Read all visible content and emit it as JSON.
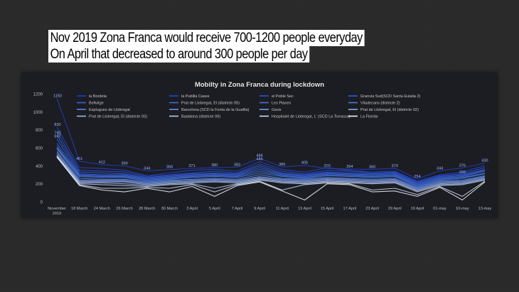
{
  "headline": {
    "line1": "Nov 2019 Zona Franca would receive 700-1200 people everyday",
    "line2": "On April that decreased to around 300 people per day"
  },
  "chart_data": {
    "type": "line",
    "title": "Mobilty in Zona Franca during lockdown",
    "xlabel": "",
    "ylabel": "",
    "ylim": [
      0,
      1200
    ],
    "yticks": [
      0,
      200,
      400,
      600,
      800,
      1000,
      1200
    ],
    "grid": false,
    "legend_position": "top",
    "categories": [
      "November 2019",
      "18 March",
      "24 March",
      "26 March",
      "28 March",
      "30 March",
      "3 April",
      "5 April",
      "7 April",
      "9 April",
      "11 April",
      "13 April",
      "15 April",
      "17 April",
      "23 April",
      "29 April",
      "19 April",
      "01-may",
      "10-may",
      "13-may"
    ],
    "series": [
      {
        "name": "la Bordeta",
        "color": "#1f3fbf",
        "values": [
          1150,
          451,
          412,
          399,
          344,
          358,
          371,
          380,
          383,
          484,
          386,
          405,
          370,
          364,
          360,
          373,
          254,
          344,
          376,
          430
        ]
      },
      {
        "name": "la Pubilla Cases",
        "color": "#2447cc",
        "values": [
          830,
          380,
          370,
          350,
          290,
          320,
          350,
          360,
          340,
          446,
          360,
          330,
          380,
          350,
          330,
          340,
          230,
          300,
          330,
          400
        ]
      },
      {
        "name": "el Poble Sec",
        "color": "#2a50d8",
        "values": [
          780,
          350,
          340,
          330,
          280,
          300,
          320,
          340,
          320,
          420,
          340,
          310,
          350,
          340,
          320,
          330,
          220,
          290,
          310,
          380
        ]
      },
      {
        "name": "Granvia Sud(SCD Santa Eulalia 2)",
        "color": "#3059de",
        "values": [
          740,
          330,
          320,
          310,
          270,
          290,
          310,
          320,
          310,
          400,
          320,
          300,
          330,
          320,
          310,
          320,
          210,
          280,
          299,
          360
        ]
      },
      {
        "name": "Bellvitge",
        "color": "#3562e0",
        "values": [
          697,
          310,
          300,
          300,
          260,
          280,
          300,
          310,
          300,
          380,
          310,
          290,
          320,
          310,
          300,
          310,
          200,
          270,
          290,
          350
        ]
      },
      {
        "name": "Prat de Llobregat, El (districte 05)",
        "color": "#3a6ae4",
        "values": [
          650,
          300,
          290,
          290,
          250,
          270,
          290,
          300,
          290,
          360,
          300,
          280,
          310,
          300,
          290,
          300,
          190,
          260,
          280,
          340
        ]
      },
      {
        "name": "Les Planes",
        "color": "#4072e6",
        "values": [
          620,
          290,
          280,
          280,
          240,
          260,
          280,
          290,
          280,
          340,
          290,
          270,
          300,
          290,
          280,
          290,
          180,
          250,
          270,
          320
        ]
      },
      {
        "name": "Viladecans (districte 2)",
        "color": "#467ae8",
        "values": [
          600,
          280,
          270,
          270,
          230,
          250,
          270,
          280,
          270,
          320,
          280,
          260,
          290,
          280,
          270,
          280,
          170,
          240,
          260,
          310
        ]
      },
      {
        "name": "Esplugues de Llobregat",
        "color": "#5a85e6",
        "values": [
          590,
          260,
          250,
          250,
          220,
          240,
          250,
          260,
          250,
          300,
          260,
          250,
          270,
          260,
          250,
          260,
          160,
          230,
          240,
          290
        ]
      },
      {
        "name": "Barcelona (SCD la Fonta de la Guatlla)",
        "color": "#6a90e6",
        "values": [
          560,
          240,
          240,
          240,
          210,
          230,
          240,
          250,
          240,
          280,
          250,
          240,
          260,
          250,
          240,
          250,
          150,
          220,
          230,
          280
        ]
      },
      {
        "name": "Gavà",
        "color": "#7b9be4",
        "values": [
          540,
          230,
          230,
          230,
          200,
          220,
          230,
          240,
          230,
          270,
          240,
          230,
          250,
          240,
          230,
          240,
          140,
          210,
          220,
          270
        ]
      },
      {
        "name": "Prat de Llobregat, El (districte 02)",
        "color": "#8ea9e6",
        "values": [
          520,
          220,
          220,
          220,
          190,
          210,
          220,
          230,
          220,
          260,
          230,
          220,
          240,
          230,
          220,
          230,
          130,
          200,
          210,
          260
        ]
      },
      {
        "name": "Prat de Llobregat, El (districte 03)",
        "color": "#a3b8ea",
        "values": [
          510,
          210,
          210,
          200,
          180,
          200,
          210,
          220,
          210,
          250,
          220,
          210,
          230,
          220,
          210,
          220,
          120,
          190,
          200,
          250
        ]
      },
      {
        "name": "Badalona (districte 09)",
        "color": "#b9c9ef",
        "values": [
          505,
          200,
          190,
          180,
          170,
          190,
          200,
          150,
          200,
          240,
          210,
          200,
          220,
          210,
          200,
          210,
          110,
          180,
          190,
          240
        ]
      },
      {
        "name": "Hospitalet de Llobregat, L' (SCD La Torrassa)",
        "color": "#d2ddf4",
        "values": [
          500,
          190,
          150,
          150,
          160,
          150,
          190,
          110,
          190,
          230,
          130,
          190,
          210,
          200,
          130,
          150,
          80,
          170,
          60,
          230
        ]
      },
      {
        "name": "La Florida",
        "color": "#eef2fb",
        "values": [
          495,
          180,
          130,
          110,
          150,
          110,
          170,
          60,
          180,
          220,
          120,
          20,
          200,
          190,
          110,
          120,
          60,
          160,
          20,
          220
        ]
      }
    ],
    "data_labels": [
      {
        "category_index": 0,
        "value": 1150,
        "label": "1150"
      },
      {
        "category_index": 0,
        "value": 830,
        "label": "830"
      },
      {
        "category_index": 0,
        "value": 740,
        "label": "740"
      },
      {
        "category_index": 0,
        "value": 697,
        "label": "697"
      },
      {
        "category_index": 1,
        "value": 451,
        "label": "451"
      },
      {
        "category_index": 2,
        "value": 412,
        "label": "412"
      },
      {
        "category_index": 3,
        "value": 399,
        "label": "399"
      },
      {
        "category_index": 4,
        "value": 344,
        "label": "344"
      },
      {
        "category_index": 5,
        "value": 358,
        "label": "358"
      },
      {
        "category_index": 6,
        "value": 371,
        "label": "371"
      },
      {
        "category_index": 7,
        "value": 380,
        "label": "380"
      },
      {
        "category_index": 8,
        "value": 383,
        "label": "383"
      },
      {
        "category_index": 9,
        "value": 484,
        "label": "484"
      },
      {
        "category_index": 9,
        "value": 446,
        "label": "446"
      },
      {
        "category_index": 10,
        "value": 386,
        "label": "386"
      },
      {
        "category_index": 11,
        "value": 405,
        "label": "405"
      },
      {
        "category_index": 12,
        "value": 370,
        "label": "370"
      },
      {
        "category_index": 13,
        "value": 364,
        "label": "364"
      },
      {
        "category_index": 14,
        "value": 360,
        "label": "360"
      },
      {
        "category_index": 15,
        "value": 373,
        "label": "373"
      },
      {
        "category_index": 16,
        "value": 254,
        "label": "254"
      },
      {
        "category_index": 17,
        "value": 344,
        "label": "344"
      },
      {
        "category_index": 18,
        "value": 376,
        "label": "376"
      },
      {
        "category_index": 18,
        "value": 299,
        "label": "299"
      },
      {
        "category_index": 19,
        "value": 430,
        "label": "430"
      }
    ]
  }
}
